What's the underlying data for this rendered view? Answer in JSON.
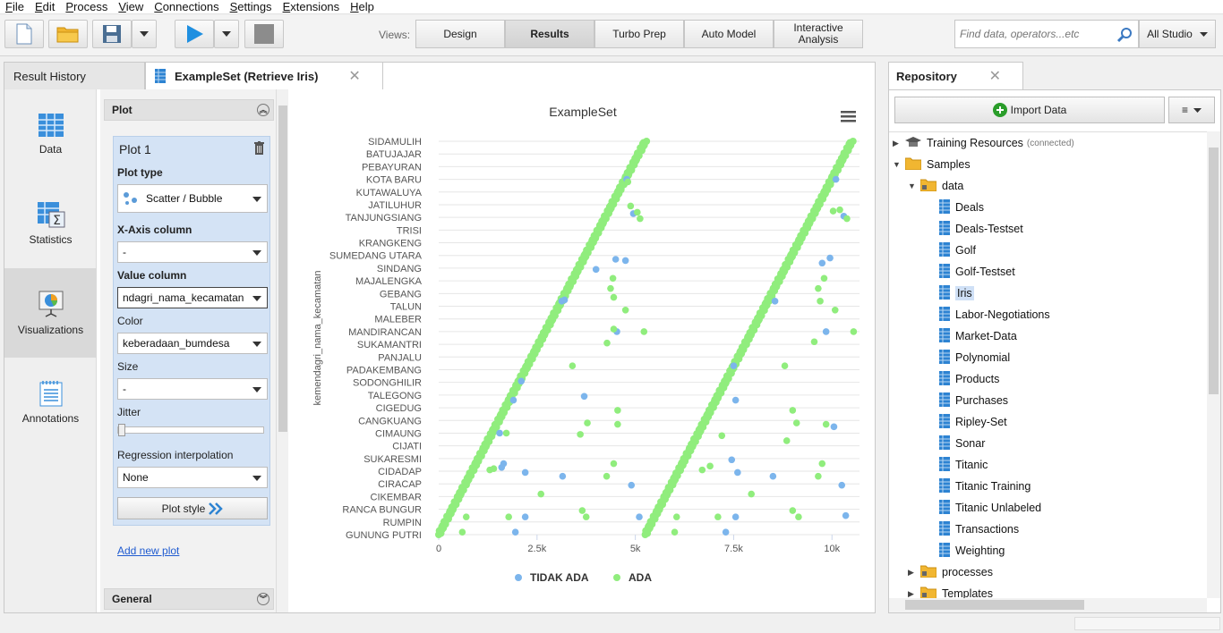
{
  "menu": [
    "File",
    "Edit",
    "Process",
    "View",
    "Connections",
    "Settings",
    "Extensions",
    "Help"
  ],
  "views": {
    "label": "Views:",
    "buttons": [
      "Design",
      "Results",
      "Turbo Prep",
      "Auto Model",
      "Interactive Analysis"
    ],
    "active": "Results"
  },
  "search": {
    "placeholder": "Find data, operators...etc",
    "scope": "All Studio"
  },
  "tabs": {
    "history": "Result History",
    "active": "ExampleSet (Retrieve Iris)"
  },
  "sidebar": [
    "Data",
    "Statistics",
    "Visualizations",
    "Annotations"
  ],
  "config": {
    "plot_header": "Plot",
    "plot_title": "Plot 1",
    "plot_type_label": "Plot type",
    "plot_type": "Scatter / Bubble",
    "x_axis_label": "X-Axis column",
    "x_axis": "-",
    "value_label": "Value column",
    "value": "ndagri_nama_kecamatan",
    "color_label": "Color",
    "color": "keberadaan_bumdesa",
    "size_label": "Size",
    "size": "-",
    "jitter_label": "Jitter",
    "regression_label": "Regression interpolation",
    "regression": "None",
    "plot_style": "Plot style",
    "add_plot": "Add new plot",
    "general_header": "General"
  },
  "repository": {
    "title": "Repository",
    "import": "Import Data",
    "menu": "≡",
    "tree": [
      {
        "label": "Training Resources",
        "sub": "(connected)",
        "level": 0,
        "type": "grad",
        "toggle": "▶"
      },
      {
        "label": "Samples",
        "level": 0,
        "type": "folder",
        "toggle": "▼"
      },
      {
        "label": "data",
        "level": 1,
        "type": "folder-lock",
        "toggle": "▼"
      },
      {
        "label": "Deals",
        "level": 2,
        "type": "table"
      },
      {
        "label": "Deals-Testset",
        "level": 2,
        "type": "table"
      },
      {
        "label": "Golf",
        "level": 2,
        "type": "table"
      },
      {
        "label": "Golf-Testset",
        "level": 2,
        "type": "table"
      },
      {
        "label": "Iris",
        "level": 2,
        "type": "table",
        "selected": true
      },
      {
        "label": "Labor-Negotiations",
        "level": 2,
        "type": "table"
      },
      {
        "label": "Market-Data",
        "level": 2,
        "type": "table"
      },
      {
        "label": "Polynomial",
        "level": 2,
        "type": "table"
      },
      {
        "label": "Products",
        "level": 2,
        "type": "table"
      },
      {
        "label": "Purchases",
        "level": 2,
        "type": "table"
      },
      {
        "label": "Ripley-Set",
        "level": 2,
        "type": "table"
      },
      {
        "label": "Sonar",
        "level": 2,
        "type": "table"
      },
      {
        "label": "Titanic",
        "level": 2,
        "type": "table"
      },
      {
        "label": "Titanic Training",
        "level": 2,
        "type": "table"
      },
      {
        "label": "Titanic Unlabeled",
        "level": 2,
        "type": "table"
      },
      {
        "label": "Transactions",
        "level": 2,
        "type": "table"
      },
      {
        "label": "Weighting",
        "level": 2,
        "type": "table"
      },
      {
        "label": "processes",
        "level": 1,
        "type": "folder-lock",
        "toggle": "▶"
      },
      {
        "label": "Templates",
        "level": 1,
        "type": "folder-lock",
        "toggle": "▶"
      }
    ]
  },
  "chart_data": {
    "type": "scatter",
    "title": "ExampleSet",
    "xlabel": "",
    "ylabel": "kemendagri_nama_kecamatan",
    "xlim": [
      0,
      10700
    ],
    "xticks": [
      0,
      2500,
      5000,
      7500,
      10000
    ],
    "xticklabels": [
      "0",
      "2.5k",
      "5k",
      "7.5k",
      "10k"
    ],
    "categories": [
      "SIDAMULIH",
      "BATUJAJAR",
      "PEBAYURAN",
      "KOTA BARU",
      "KUTAWALUYA",
      "JATILUHUR",
      "TANJUNGSIANG",
      "TRISI",
      "KRANGKENG",
      "SUMEDANG UTARA",
      "SINDANG",
      "MAJALENGKA",
      "GEBANG",
      "TALUN",
      "MALEBER",
      "MANDIRANCAN",
      "SUKAMANTRI",
      "PANJALU",
      "PADAKEMBANG",
      "SODONGHILIR",
      "TALEGONG",
      "CIGEDUG",
      "CANGKUANG",
      "CIMAUNG",
      "CIJATI",
      "SUKARESMI",
      "CIDADAP",
      "CIRACAP",
      "CIKEMBAR",
      "RANCA BUNGUR",
      "RUMPIN",
      "GUNUNG PUTRI"
    ],
    "legend_position": "bottom",
    "grid": true,
    "series": [
      {
        "name": "TIDAK ADA",
        "color": "#7cb5ec",
        "points": [
          [
            4780,
            3
          ],
          [
            4950,
            5.7
          ],
          [
            4750,
            9.4
          ],
          [
            4500,
            9.3
          ],
          [
            4000,
            10.1
          ],
          [
            3200,
            12.5
          ],
          [
            3130,
            12.6
          ],
          [
            4530,
            15
          ],
          [
            2100,
            18.9
          ],
          [
            3700,
            20.1
          ],
          [
            1900,
            20.4
          ],
          [
            1550,
            23
          ],
          [
            1650,
            25.4
          ],
          [
            1600,
            25.7
          ],
          [
            2200,
            26.1
          ],
          [
            3150,
            26.4
          ],
          [
            4900,
            27.1
          ],
          [
            2200,
            29.6
          ],
          [
            5100,
            29.6
          ],
          [
            1950,
            30.8
          ],
          [
            10100,
            3
          ],
          [
            10300,
            5.9
          ],
          [
            9950,
            9.2
          ],
          [
            9750,
            9.6
          ],
          [
            8550,
            12.6
          ],
          [
            9850,
            15
          ],
          [
            7500,
            17.7
          ],
          [
            7550,
            20.4
          ],
          [
            10050,
            22.5
          ],
          [
            7450,
            25.1
          ],
          [
            7600,
            26.1
          ],
          [
            8500,
            26.4
          ],
          [
            10250,
            27.1
          ],
          [
            7550,
            29.6
          ],
          [
            10350,
            29.5
          ],
          [
            7300,
            30.8
          ]
        ]
      },
      {
        "name": "ADA",
        "color": "#90ed7d",
        "points": [
          [
            4810,
            3.2
          ],
          [
            4880,
            5.1
          ],
          [
            5050,
            5.6
          ],
          [
            5120,
            6.1
          ],
          [
            4430,
            10.8
          ],
          [
            4370,
            11.6
          ],
          [
            4450,
            12.3
          ],
          [
            4750,
            13.3
          ],
          [
            4450,
            14.8
          ],
          [
            5220,
            15
          ],
          [
            4280,
            15.9
          ],
          [
            3400,
            17.7
          ],
          [
            4550,
            21.2
          ],
          [
            3780,
            22.2
          ],
          [
            4550,
            22.3
          ],
          [
            3600,
            23.1
          ],
          [
            1720,
            23
          ],
          [
            1300,
            25.9
          ],
          [
            1400,
            25.8
          ],
          [
            4450,
            25.4
          ],
          [
            4270,
            26.4
          ],
          [
            2600,
            27.8
          ],
          [
            3650,
            29.1
          ],
          [
            3750,
            29.6
          ],
          [
            700,
            29.6
          ],
          [
            1780,
            29.6
          ],
          [
            600,
            30.8
          ],
          [
            10030,
            5.5
          ],
          [
            10200,
            5.4
          ],
          [
            10380,
            6.1
          ],
          [
            9800,
            10.8
          ],
          [
            9650,
            11.6
          ],
          [
            9700,
            12.6
          ],
          [
            10080,
            13.3
          ],
          [
            10550,
            15
          ],
          [
            9550,
            15.8
          ],
          [
            8800,
            17.7
          ],
          [
            9000,
            21.2
          ],
          [
            9850,
            22.3
          ],
          [
            8850,
            23.6
          ],
          [
            9100,
            22.2
          ],
          [
            7200,
            23.2
          ],
          [
            6700,
            25.9
          ],
          [
            6900,
            25.6
          ],
          [
            9750,
            25.4
          ],
          [
            9650,
            26.4
          ],
          [
            7950,
            27.8
          ],
          [
            9000,
            29.1
          ],
          [
            9150,
            29.6
          ],
          [
            6050,
            29.6
          ],
          [
            7100,
            29.6
          ],
          [
            6000,
            30.8
          ]
        ]
      }
    ]
  }
}
